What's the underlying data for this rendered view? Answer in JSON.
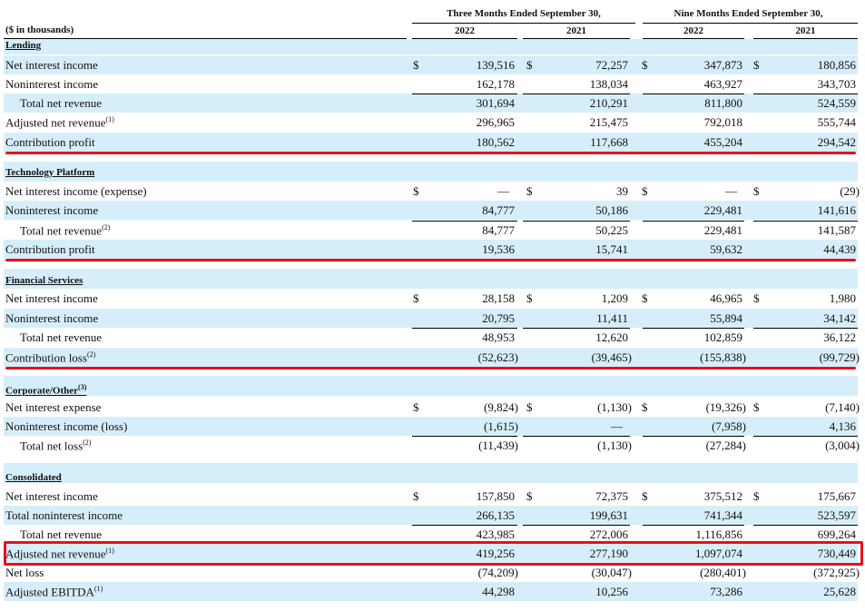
{
  "header": {
    "group1": "Three Months Ended September 30,",
    "group2": "Nine Months Ended September 30,",
    "years": [
      "2022",
      "2021",
      "2022",
      "2021"
    ],
    "units_label": "($ in thousands)"
  },
  "colors": {
    "shade": "#d6eefa",
    "highlight": "#e8101a"
  },
  "sections": {
    "lending": "Lending",
    "technology": "Technology Platform",
    "financial": "Financial Services",
    "corporate": "Corporate/Other",
    "consolidated": "Consolidated"
  },
  "rows": [
    {
      "label": "Net interest income",
      "dollars": true,
      "v": [
        "139,516",
        "72,257",
        "347,873",
        "180,856"
      ]
    },
    {
      "label": "Noninterest income",
      "v": [
        "162,178",
        "138,034",
        "463,927",
        "343,703"
      ]
    },
    {
      "label": "Total net revenue",
      "v": [
        "301,694",
        "210,291",
        "811,800",
        "524,559"
      ]
    },
    {
      "label": "Adjusted net revenue",
      "v": [
        "296,965",
        "215,475",
        "792,018",
        "555,744"
      ]
    },
    {
      "label": "Contribution profit",
      "v": [
        "180,562",
        "117,668",
        "455,204",
        "294,542"
      ]
    },
    {
      "label": "Net interest income (expense)",
      "dollars": true,
      "v": [
        "—",
        "39",
        "—",
        "(29)"
      ]
    },
    {
      "label": "Noninterest income",
      "v": [
        "84,777",
        "50,186",
        "229,481",
        "141,616"
      ]
    },
    {
      "label": "Total net revenue",
      "v": [
        "84,777",
        "50,225",
        "229,481",
        "141,587"
      ]
    },
    {
      "label": "Contribution profit",
      "v": [
        "19,536",
        "15,741",
        "59,632",
        "44,439"
      ]
    },
    {
      "label": "Net interest income",
      "dollars": true,
      "v": [
        "28,158",
        "1,209",
        "46,965",
        "1,980"
      ]
    },
    {
      "label": "Noninterest income",
      "v": [
        "20,795",
        "11,411",
        "55,894",
        "34,142"
      ]
    },
    {
      "label": "Total net revenue",
      "v": [
        "48,953",
        "12,620",
        "102,859",
        "36,122"
      ]
    },
    {
      "label": "Contribution loss",
      "v": [
        "(52,623)",
        "(39,465)",
        "(155,838)",
        "(99,729)"
      ]
    },
    {
      "label": "Net interest expense",
      "dollars": true,
      "v": [
        "(9,824)",
        "(1,130)",
        "(19,326)",
        "(7,140)"
      ]
    },
    {
      "label": "Noninterest income (loss)",
      "v": [
        "(1,615)",
        "—",
        "(7,958)",
        "4,136"
      ]
    },
    {
      "label": "Total net loss",
      "v": [
        "(11,439)",
        "(1,130)",
        "(27,284)",
        "(3,004)"
      ]
    },
    {
      "label": "Net interest income",
      "dollars": true,
      "v": [
        "157,850",
        "72,375",
        "375,512",
        "175,667"
      ]
    },
    {
      "label": "Total noninterest income",
      "v": [
        "266,135",
        "199,631",
        "741,344",
        "523,597"
      ]
    },
    {
      "label": "Total net revenue",
      "v": [
        "423,985",
        "272,006",
        "1,116,856",
        "699,264"
      ]
    },
    {
      "label": "Adjusted net revenue",
      "v": [
        "419,256",
        "277,190",
        "1,097,074",
        "730,449"
      ]
    },
    {
      "label": "Net loss",
      "v": [
        "(74,209)",
        "(30,047)",
        "(280,401)",
        "(372,925)"
      ]
    },
    {
      "label": "Adjusted EBITDA",
      "v": [
        "44,298",
        "10,256",
        "73,286",
        "25,628"
      ]
    }
  ],
  "footnotes": {
    "one": "(1)",
    "two": "(2)",
    "three": "(3)"
  },
  "dollar_sign": "$"
}
